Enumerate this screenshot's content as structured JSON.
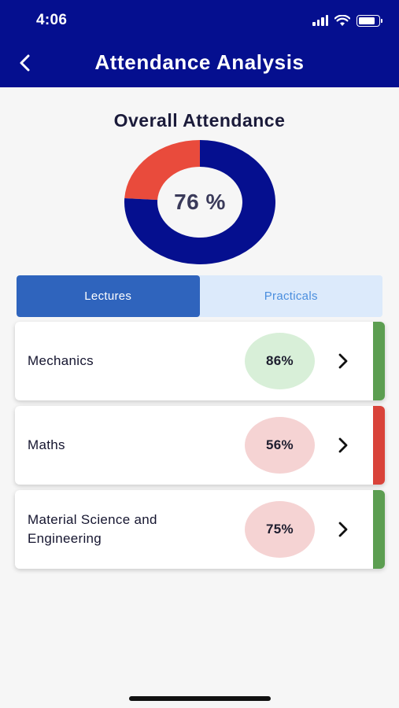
{
  "status_bar": {
    "time": "4:06"
  },
  "header": {
    "title": "Attendance Analysis"
  },
  "overall": {
    "title": "Overall Attendance",
    "percent_label": "76 %",
    "present_fraction": 0.76,
    "present_color": "#050f8f",
    "absent_color": "#e94b3c"
  },
  "tabs": [
    {
      "label": "Lectures",
      "active": true
    },
    {
      "label": "Practicals",
      "active": false
    }
  ],
  "subjects": [
    {
      "name": "Mechanics",
      "percent": "86%",
      "status": "good",
      "badge_color": "#d8efd8",
      "strip_color": "#5c9e51"
    },
    {
      "name": "Maths",
      "percent": "56%",
      "status": "low",
      "badge_color": "#f5d3d3",
      "strip_color": "#d9433a"
    },
    {
      "name": "Material Science and Engineering",
      "percent": "75%",
      "status": "good",
      "badge_color": "#f5d3d3",
      "strip_color": "#5c9e51"
    }
  ],
  "icons": {
    "back": "chevron-left-icon",
    "row_arrow": "chevron-right-icon"
  }
}
